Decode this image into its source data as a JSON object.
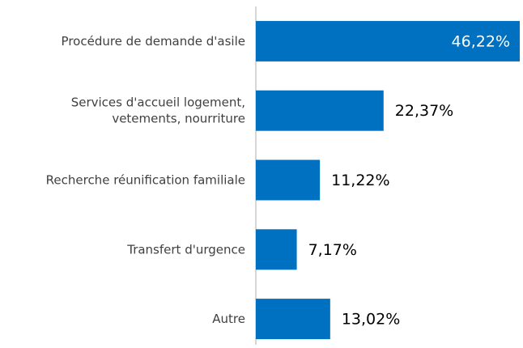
{
  "chart_data": {
    "type": "hbar",
    "categories": [
      "Procédure de demande d'asile",
      "Services d'accueil logement,\nvetements, nourriture",
      "Recherche réunification familiale",
      "Transfert d'urgence",
      "Autre"
    ],
    "values": [
      46.22,
      22.37,
      11.22,
      7.17,
      13.02
    ],
    "value_labels": [
      "46,22%",
      "22,37%",
      "11,22%",
      "7,17%",
      "13,02%"
    ],
    "color": "#0070c0"
  }
}
